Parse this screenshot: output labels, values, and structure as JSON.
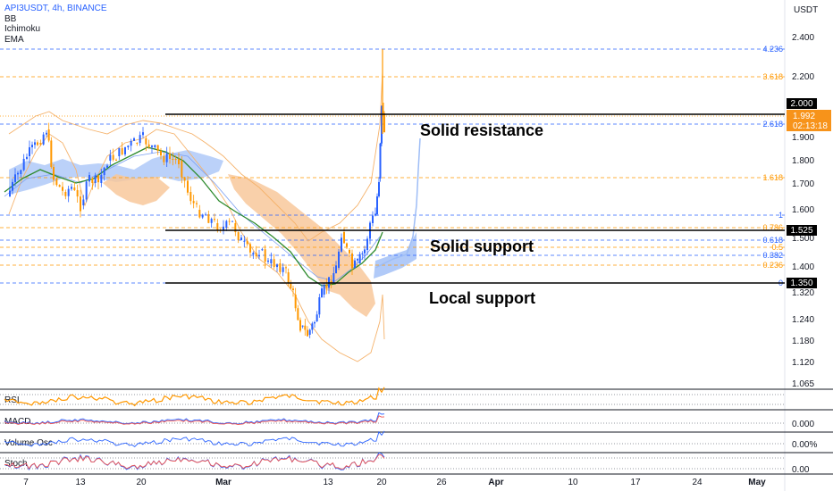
{
  "header": {
    "symbol": "API3USDT, 4h, BINANCE",
    "indicators": [
      "BB",
      "Ichimoku",
      "EMA"
    ]
  },
  "axis": {
    "unit": "USDT"
  },
  "chart_data": {
    "type": "candlestick",
    "price_ticks": [
      "2.400",
      "2.200",
      "1.900",
      "1.800",
      "1.700",
      "1.600",
      "1.500",
      "1.400",
      "1.320",
      "1.240",
      "1.180",
      "1.120",
      "1.065"
    ],
    "date_ticks": [
      "7",
      "13",
      "20",
      "Mar",
      "13",
      "20",
      "26",
      "Apr",
      "10",
      "17",
      "24",
      "May"
    ],
    "price_labels": [
      {
        "value": "2.000",
        "style": "black"
      },
      {
        "value": "1.992",
        "style": "orange"
      },
      {
        "value": "02:13:18",
        "style": "orange"
      },
      {
        "value": "1.525",
        "style": "black"
      },
      {
        "value": "1.350",
        "style": "black"
      }
    ],
    "fib_levels": [
      {
        "label": "4.236",
        "color": "#2962ff"
      },
      {
        "label": "3.618",
        "color": "#ff9800"
      },
      {
        "label": "2.618",
        "color": "#2962ff"
      },
      {
        "label": "1.618",
        "color": "#ff9800"
      },
      {
        "label": "1",
        "color": "#2962ff"
      },
      {
        "label": "0.786",
        "color": "#ff9800"
      },
      {
        "label": "0.618",
        "color": "#2962ff"
      },
      {
        "label": "0.5",
        "color": "#ff9800"
      },
      {
        "label": "0.382",
        "color": "#2962ff"
      },
      {
        "label": "0.236",
        "color": "#ff9800"
      },
      {
        "label": "0",
        "color": "#2962ff"
      }
    ],
    "horizontal_lines": [
      {
        "price": 2.0,
        "annotation": "Solid resistance"
      },
      {
        "price": 1.525,
        "annotation": "Solid support"
      },
      {
        "price": 1.35,
        "annotation": "Local support"
      }
    ],
    "indicator_panes": [
      {
        "name": "RSI",
        "tick": ""
      },
      {
        "name": "MACD",
        "tick": "0.000"
      },
      {
        "name": "Volume Osc",
        "tick": "0.00%"
      },
      {
        "name": "Stoch",
        "tick": "0.00"
      }
    ]
  },
  "colors": {
    "up": "#26a69a",
    "down": "#ef5350",
    "candle_up": "#2962ff",
    "candle_down": "#ff9800",
    "cloud_blue": "#9ebdf6",
    "cloud_orange": "#f8c89b",
    "ema": "#2e8b2e"
  }
}
